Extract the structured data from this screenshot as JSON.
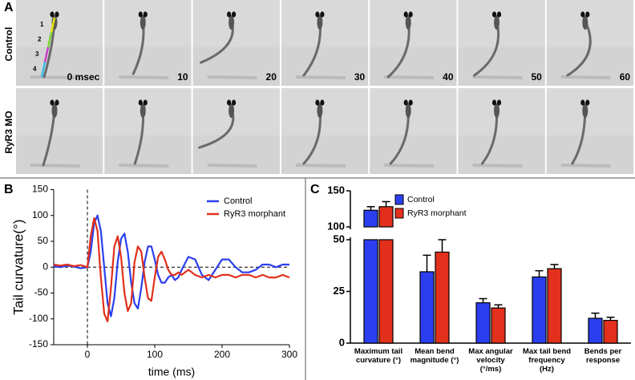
{
  "panel_labels": [
    "A",
    "B",
    "C"
  ],
  "panel_a": {
    "rows": [
      "Control",
      "RyR3 MO"
    ],
    "times": [
      "0 msec",
      "10",
      "20",
      "30",
      "40",
      "50",
      "60"
    ],
    "segments": [
      "1",
      "2",
      "3",
      "4"
    ]
  },
  "chart_data": [
    {
      "type": "line",
      "xlabel": "time (ms)",
      "ylabel": "Tail curvature(°)",
      "x": [
        -50,
        -40,
        -30,
        -20,
        -10,
        0,
        5,
        10,
        15,
        20,
        25,
        30,
        35,
        40,
        45,
        50,
        55,
        60,
        65,
        70,
        75,
        80,
        85,
        90,
        95,
        100,
        105,
        110,
        115,
        120,
        125,
        130,
        135,
        140,
        150,
        160,
        170,
        180,
        190,
        200,
        210,
        220,
        230,
        240,
        250,
        260,
        270,
        280,
        290,
        300
      ],
      "series": [
        {
          "name": "Control",
          "color": "#2b3ff0",
          "values": [
            2,
            0,
            3,
            1,
            -2,
            0,
            30,
            85,
            100,
            70,
            0,
            -70,
            -95,
            -60,
            10,
            55,
            65,
            30,
            -30,
            -70,
            -80,
            -40,
            10,
            40,
            40,
            15,
            -15,
            -30,
            -30,
            -20,
            -15,
            -25,
            -20,
            -5,
            20,
            15,
            -15,
            -25,
            -5,
            15,
            15,
            0,
            -10,
            -10,
            -5,
            5,
            5,
            0,
            5,
            5
          ]
        },
        {
          "name": "RyR3 morphant",
          "color": "#e2301c",
          "values": [
            5,
            3,
            5,
            2,
            4,
            0,
            60,
            95,
            70,
            -20,
            -90,
            -105,
            -40,
            40,
            60,
            20,
            -50,
            -85,
            -70,
            10,
            40,
            30,
            -20,
            -60,
            -65,
            -20,
            20,
            30,
            15,
            -5,
            -15,
            -15,
            -10,
            -15,
            -5,
            -15,
            -20,
            -15,
            -20,
            -15,
            -15,
            -20,
            -15,
            -15,
            -20,
            -15,
            -20,
            -20,
            -15,
            -20
          ]
        }
      ],
      "xlim": [
        -50,
        300
      ],
      "xticks": [
        0,
        100,
        200,
        300
      ],
      "ylim": [
        -150,
        150
      ],
      "yticks": [
        150,
        100,
        50,
        0,
        -50,
        -100,
        -150
      ],
      "zero_lines": {
        "x": 0,
        "y": 0
      },
      "legend": "upper right"
    },
    {
      "type": "bar",
      "categories": [
        "Maximum tail\ncurvature (°)",
        "Mean bend\nmagnitude (°)",
        "Max angular\nvelocity\n(°/ms)",
        "Max tail bend\nfrequency\n(Hz)",
        "Bends per\nresponse"
      ],
      "series": [
        {
          "name": "Control",
          "color": "#2b3ff0",
          "values": [
            123,
            34.5,
            19.5,
            32,
            12
          ],
          "errors": [
            5,
            8,
            2,
            3,
            2.5
          ]
        },
        {
          "name": "RyR3 morphant",
          "color": "#e2301c",
          "values": [
            128,
            44,
            17,
            36,
            11
          ],
          "errors": [
            7,
            6,
            1.5,
            2,
            1.5
          ]
        }
      ],
      "ylim": [
        0,
        50
      ],
      "yticks": [
        0,
        25,
        50
      ],
      "y_break": {
        "ylim": [
          100,
          150
        ],
        "yticks": [
          100,
          150
        ]
      },
      "legend": "upper right"
    }
  ]
}
